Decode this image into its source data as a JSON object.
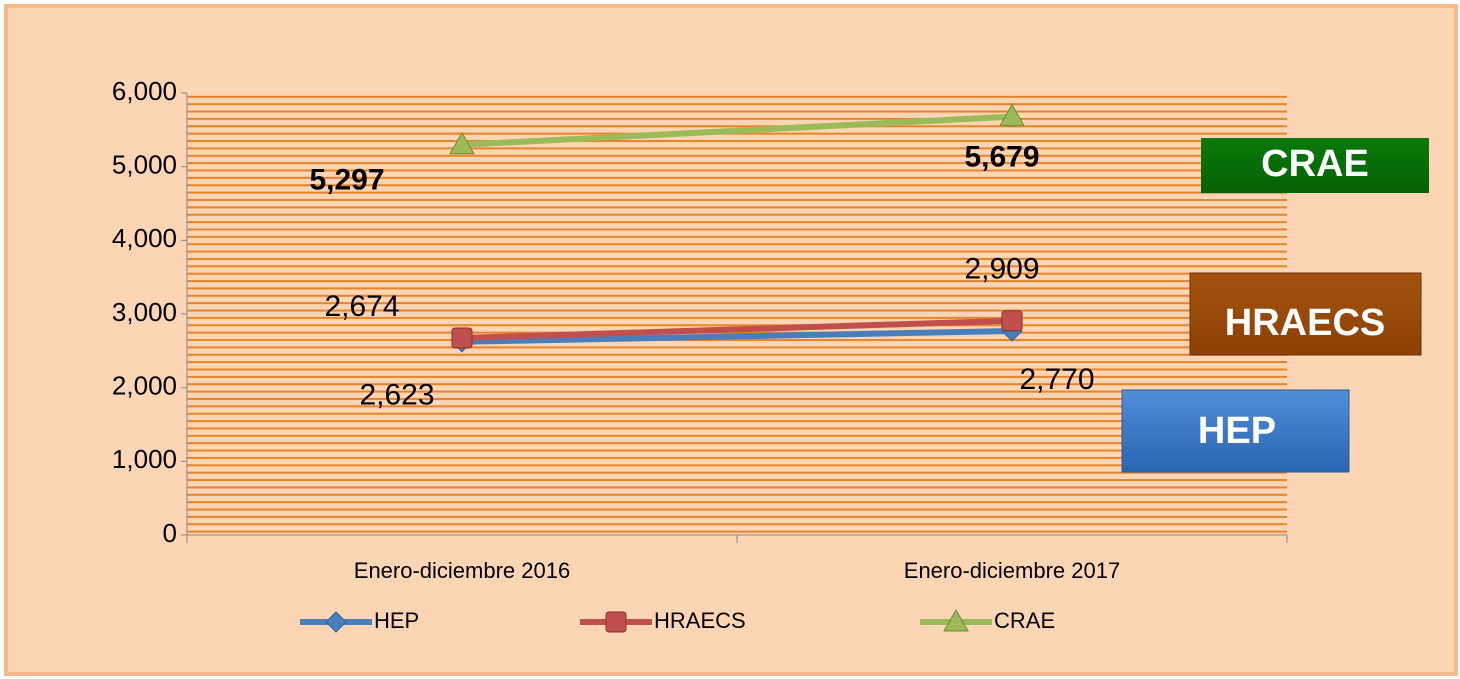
{
  "chart_data": {
    "type": "line",
    "categories": [
      "Enero-diciembre 2016",
      "Enero-diciembre 2017"
    ],
    "series": [
      {
        "name": "HEP",
        "color": "#4a7ebb",
        "values": [
          2623,
          2770
        ],
        "value_labels": [
          "2,623",
          "2,770"
        ]
      },
      {
        "name": "HRAECS",
        "color": "#c0504d",
        "values": [
          2674,
          2909
        ],
        "value_labels": [
          "2,674",
          "2,909"
        ]
      },
      {
        "name": "CRAE",
        "color": "#9bbb59",
        "values": [
          5297,
          5679
        ],
        "value_labels": [
          "5,297",
          "5,679"
        ]
      }
    ],
    "ylim": [
      0,
      6000
    ],
    "yticks": [
      0,
      {
        "value": 1000,
        "label": "1,000"
      },
      {
        "value": 2000,
        "label": "2,000"
      },
      {
        "value": 3000,
        "label": "3,000"
      },
      {
        "value": 4000,
        "label": "4,000"
      },
      {
        "value": 5000,
        "label": "5,000"
      },
      {
        "value": 6000,
        "label": "6,000"
      }
    ],
    "legend": "bottom"
  }
}
